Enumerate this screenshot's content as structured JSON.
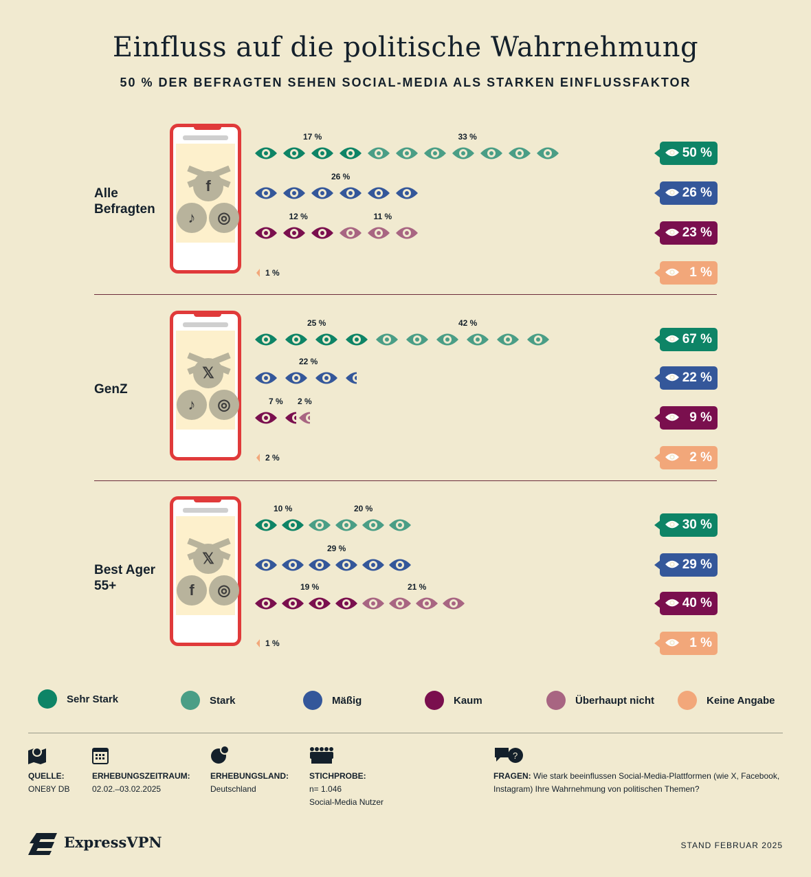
{
  "title": "Einfluss auf die politische Wahrnehmung",
  "subtitle": "50 % DER BEFRAGTEN SEHEN SOCIAL-MEDIA ALS STARKEN EINFLUSSFAKTOR",
  "colors": {
    "background": "#f1ead0",
    "sehr_stark": "#0e8466",
    "stark": "#4a9e86",
    "maessig": "#34579a",
    "kaum": "#7a0f4e",
    "ueberhaupt_nicht": "#a86582",
    "keine_angabe": "#f2a77a",
    "phone": "#e03a3a"
  },
  "chart_data": {
    "type": "pictogram",
    "categories": [
      "Sehr Stark",
      "Stark",
      "Mäßig",
      "Kaum",
      "Überhaupt nicht",
      "Keine Angabe"
    ],
    "groups": [
      {
        "label": "Alle Befragten",
        "platforms": [
          "facebook",
          "tiktok",
          "instagram"
        ],
        "rows": [
          {
            "parts": [
              {
                "cat": "Sehr Stark",
                "value": 17,
                "label": "17 %"
              },
              {
                "cat": "Stark",
                "value": 33,
                "label": "33 %"
              }
            ],
            "total": "50 %"
          },
          {
            "parts": [
              {
                "cat": "Mäßig",
                "value": 26,
                "label": "26 %"
              }
            ],
            "total": "26 %"
          },
          {
            "parts": [
              {
                "cat": "Kaum",
                "value": 12,
                "label": "12 %"
              },
              {
                "cat": "Überhaupt nicht",
                "value": 11,
                "label": "11 %"
              }
            ],
            "total": "23 %"
          },
          {
            "parts": [
              {
                "cat": "Keine Angabe",
                "value": 1,
                "label": "1 %"
              }
            ],
            "total": "1 %"
          }
        ]
      },
      {
        "label": "GenZ",
        "platforms": [
          "x",
          "tiktok",
          "instagram"
        ],
        "rows": [
          {
            "parts": [
              {
                "cat": "Sehr Stark",
                "value": 25,
                "label": "25 %"
              },
              {
                "cat": "Stark",
                "value": 42,
                "label": "42 %"
              }
            ],
            "total": "67 %"
          },
          {
            "parts": [
              {
                "cat": "Mäßig",
                "value": 22,
                "label": "22 %"
              }
            ],
            "total": "22 %"
          },
          {
            "parts": [
              {
                "cat": "Kaum",
                "value": 7,
                "label": "7 %"
              },
              {
                "cat": "Überhaupt nicht",
                "value": 2,
                "label": "2 %"
              }
            ],
            "total": "9 %"
          },
          {
            "parts": [
              {
                "cat": "Keine Angabe",
                "value": 2,
                "label": "2 %"
              }
            ],
            "total": "2 %"
          }
        ]
      },
      {
        "label": "Best Ager 55+",
        "platforms": [
          "x",
          "facebook",
          "instagram"
        ],
        "rows": [
          {
            "parts": [
              {
                "cat": "Sehr Stark",
                "value": 10,
                "label": "10 %"
              },
              {
                "cat": "Stark",
                "value": 20,
                "label": "20 %"
              }
            ],
            "total": "30 %"
          },
          {
            "parts": [
              {
                "cat": "Mäßig",
                "value": 29,
                "label": "29 %"
              }
            ],
            "total": "29 %"
          },
          {
            "parts": [
              {
                "cat": "Kaum",
                "value": 19,
                "label": "19 %"
              },
              {
                "cat": "Überhaupt nicht",
                "value": 21,
                "label": "21 %"
              }
            ],
            "total": "40 %"
          },
          {
            "parts": [
              {
                "cat": "Keine Angabe",
                "value": 1,
                "label": "1 %"
              }
            ],
            "total": "1 %"
          }
        ]
      }
    ]
  },
  "legend": [
    "Sehr Stark",
    "Stark",
    "Mäßig",
    "Kaum",
    "Überhaupt nicht",
    "Keine Angabe"
  ],
  "footer": {
    "quelle": {
      "label": "QUELLE:",
      "value": "ONE8Y DB"
    },
    "zeitraum": {
      "label": "ERHEBUNGSZEITRAUM:",
      "value": "02.02.–03.02.2025"
    },
    "land": {
      "label": "ERHEBUNGSLAND:",
      "value": "Deutschland"
    },
    "stichprobe": {
      "label": "STICHPROBE:",
      "value": "n= 1.046",
      "value2": "Social-Media Nutzer"
    },
    "fragen": {
      "label": "FRAGEN:",
      "value": "Wie stark beeinflussen Social-Media-Plattformen (wie X, Facebook, Instagram) Ihre Wahrnehmung von politischen Themen?"
    },
    "brand": "ExpressVPN",
    "stand": "STAND FEBRUAR 2025"
  }
}
